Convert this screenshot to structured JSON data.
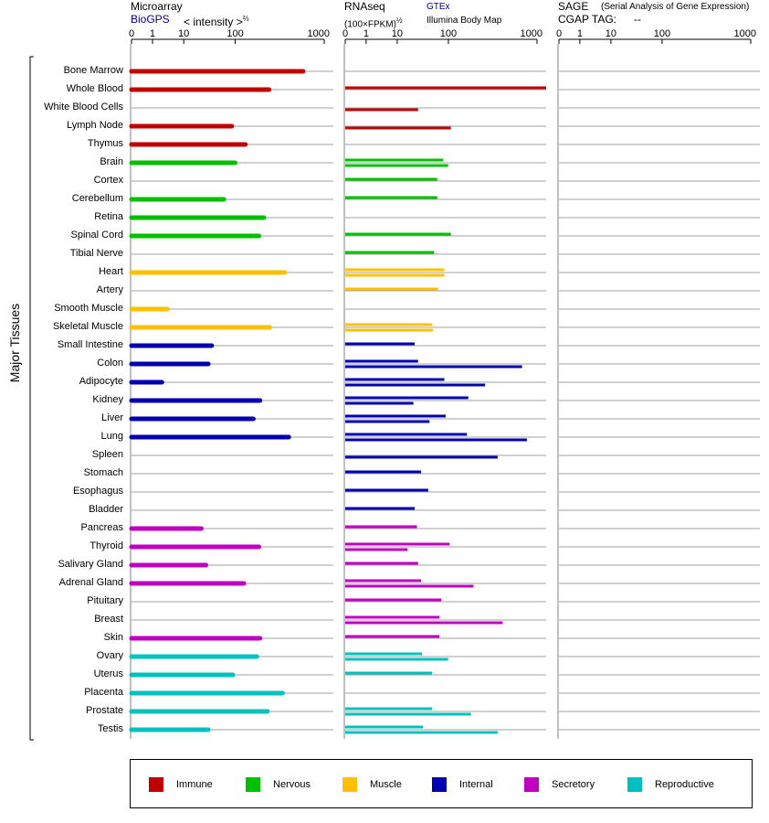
{
  "headers": {
    "microarray": {
      "title": "Microarray",
      "source": "BioGPS",
      "unit": "< intensity >",
      "unit_exp": "⅔"
    },
    "rnaseq": {
      "title": "RNAseq",
      "unit": "(100×FPKM)",
      "unit_exp": "½",
      "source1": "GTEx",
      "source2": "Illumina Body Map"
    },
    "sage": {
      "title": "SAGE",
      "subtitle": "(Serial Analysis of Gene Expression)",
      "tag_label": "CGAP TAG:",
      "tag_value": "--"
    }
  },
  "y_axis_label": "Major Tissues",
  "colors": {
    "Immune": "#c00000",
    "Nervous": "#00c000",
    "Muscle": "#ffc000",
    "Internal": "#0000b0",
    "Secretory": "#c000c0",
    "Reproductive": "#00c0c0",
    "grid": "#808080",
    "axis": "#000000"
  },
  "legend": [
    {
      "key": "Immune",
      "label": "Immune"
    },
    {
      "key": "Nervous",
      "label": "Nervous"
    },
    {
      "key": "Muscle",
      "label": "Muscle"
    },
    {
      "key": "Internal",
      "label": "Internal"
    },
    {
      "key": "Secretory",
      "label": "Secretory"
    },
    {
      "key": "Reproductive",
      "label": "Reproductive"
    }
  ],
  "chart_data": {
    "type": "bar",
    "orientation": "horizontal",
    "axis_ticks": [
      "0",
      "1",
      "10",
      "100",
      "1000"
    ],
    "axis_tick_values": [
      0,
      1,
      10,
      100,
      1000
    ],
    "xlim": [
      0,
      1000
    ],
    "panels": [
      "Microarray",
      "RNAseq",
      "SAGE"
    ],
    "tissues": [
      {
        "name": "Bone Marrow",
        "group": "Immune",
        "microarray": 580,
        "gtex": null,
        "ibm": null,
        "sage": null
      },
      {
        "name": "Whole Blood",
        "group": "Immune",
        "microarray": 240,
        "gtex": 1000,
        "ibm": null,
        "sage": null
      },
      {
        "name": "White Blood Cells",
        "group": "Immune",
        "microarray": null,
        "gtex": null,
        "ibm": 22,
        "sage": null
      },
      {
        "name": "Lymph Node",
        "group": "Immune",
        "microarray": 86,
        "gtex": null,
        "ibm": 90,
        "sage": null
      },
      {
        "name": "Thymus",
        "group": "Immune",
        "microarray": 130,
        "gtex": null,
        "ibm": null,
        "sage": null
      },
      {
        "name": "Brain",
        "group": "Nervous",
        "microarray": 100,
        "gtex": 65,
        "ibm": 80,
        "sage": null
      },
      {
        "name": "Cortex",
        "group": "Nervous",
        "microarray": null,
        "gtex": 50,
        "ibm": null,
        "sage": null
      },
      {
        "name": "Cerebellum",
        "group": "Nervous",
        "microarray": 60,
        "gtex": 50,
        "ibm": null,
        "sage": null
      },
      {
        "name": "Retina",
        "group": "Nervous",
        "microarray": 210,
        "gtex": null,
        "ibm": null,
        "sage": null
      },
      {
        "name": "Spinal Cord",
        "group": "Nervous",
        "microarray": 185,
        "gtex": 90,
        "ibm": null,
        "sage": null
      },
      {
        "name": "Tibial Nerve",
        "group": "Nervous",
        "microarray": null,
        "gtex": 44,
        "ibm": null,
        "sage": null
      },
      {
        "name": "Heart",
        "group": "Muscle",
        "microarray": 360,
        "gtex": 68,
        "ibm": 68,
        "sage": null
      },
      {
        "name": "Artery",
        "group": "Muscle",
        "microarray": null,
        "gtex": 52,
        "ibm": null,
        "sage": null
      },
      {
        "name": "Smooth Muscle",
        "group": "Muscle",
        "microarray": 3,
        "gtex": null,
        "ibm": null,
        "sage": null
      },
      {
        "name": "Skeletal Muscle",
        "group": "Muscle",
        "microarray": 245,
        "gtex": 40,
        "ibm": 42,
        "sage": null
      },
      {
        "name": "Small Intestine",
        "group": "Internal",
        "microarray": 35,
        "gtex": 19,
        "ibm": null,
        "sage": null
      },
      {
        "name": "Colon",
        "group": "Internal",
        "microarray": 30,
        "gtex": 22,
        "ibm": 550,
        "sage": null
      },
      {
        "name": "Adipocyte",
        "group": "Internal",
        "microarray": 2,
        "gtex": 68,
        "ibm": 220,
        "sage": null
      },
      {
        "name": "Kidney",
        "group": "Internal",
        "microarray": 190,
        "gtex": 145,
        "ibm": 18,
        "sage": null
      },
      {
        "name": "Liver",
        "group": "Internal",
        "microarray": 160,
        "gtex": 72,
        "ibm": 36,
        "sage": null
      },
      {
        "name": "Lung",
        "group": "Internal",
        "microarray": 400,
        "gtex": 140,
        "ibm": 620,
        "sage": null
      },
      {
        "name": "Spleen",
        "group": "Internal",
        "microarray": null,
        "gtex": null,
        "ibm": 300,
        "sage": null
      },
      {
        "name": "Stomach",
        "group": "Internal",
        "microarray": null,
        "gtex": 25,
        "ibm": null,
        "sage": null
      },
      {
        "name": "Esophagus",
        "group": "Internal",
        "microarray": null,
        "gtex": 34,
        "ibm": null,
        "sage": null
      },
      {
        "name": "Bladder",
        "group": "Internal",
        "microarray": null,
        "gtex": 19,
        "ibm": null,
        "sage": null
      },
      {
        "name": "Pancreas",
        "group": "Secretory",
        "microarray": 22,
        "gtex": 21,
        "ibm": null,
        "sage": null
      },
      {
        "name": "Thyroid",
        "group": "Secretory",
        "microarray": 185,
        "gtex": 85,
        "ibm": 14,
        "sage": null
      },
      {
        "name": "Salivary Gland",
        "group": "Secretory",
        "microarray": 27,
        "gtex": 22,
        "ibm": null,
        "sage": null
      },
      {
        "name": "Adrenal Gland",
        "group": "Secretory",
        "microarray": 125,
        "gtex": 25,
        "ibm": 165,
        "sage": null
      },
      {
        "name": "Pituitary",
        "group": "Secretory",
        "microarray": null,
        "gtex": 60,
        "ibm": null,
        "sage": null
      },
      {
        "name": "Breast",
        "group": "Secretory",
        "microarray": null,
        "gtex": 55,
        "ibm": 340,
        "sage": null
      },
      {
        "name": "Skin",
        "group": "Secretory",
        "microarray": 190,
        "gtex": 55,
        "ibm": null,
        "sage": null
      },
      {
        "name": "Ovary",
        "group": "Reproductive",
        "microarray": 175,
        "gtex": 26,
        "ibm": 80,
        "sage": null
      },
      {
        "name": "Uterus",
        "group": "Reproductive",
        "microarray": 90,
        "gtex": 40,
        "ibm": null,
        "sage": null
      },
      {
        "name": "Placenta",
        "group": "Reproductive",
        "microarray": 340,
        "gtex": null,
        "ibm": null,
        "sage": null
      },
      {
        "name": "Prostate",
        "group": "Reproductive",
        "microarray": 230,
        "gtex": 40,
        "ibm": 155,
        "sage": null
      },
      {
        "name": "Testis",
        "group": "Reproductive",
        "microarray": 30,
        "gtex": 27,
        "ibm": 300,
        "sage": null
      }
    ]
  }
}
